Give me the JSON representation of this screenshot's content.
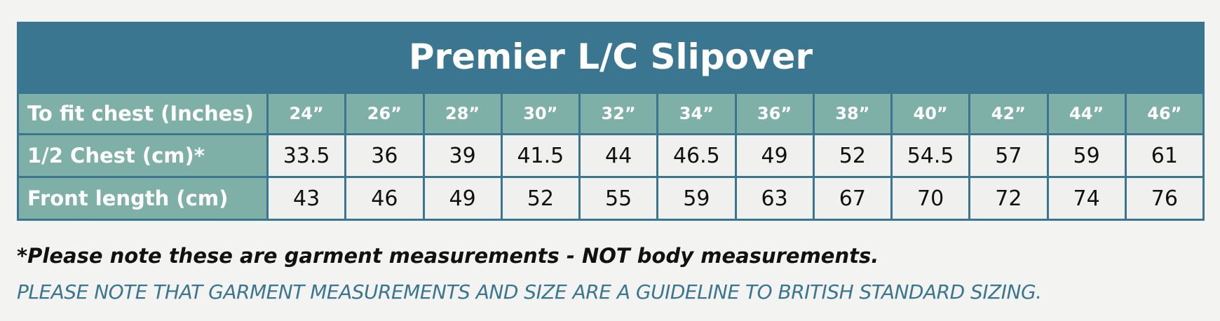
{
  "table": {
    "title": "Premier L/C Slipover",
    "header": [
      "To fit chest (Inches)",
      "24”",
      "26”",
      "28”",
      "30”",
      "32”",
      "34”",
      "36”",
      "38”",
      "40”",
      "42”",
      "44”",
      "46”"
    ],
    "rows": [
      [
        "1/2 Chest (cm)*",
        "33.5",
        "36",
        "39",
        "41.5",
        "44",
        "46.5",
        "49",
        "52",
        "54.5",
        "57",
        "59",
        "61"
      ],
      [
        "Front length (cm)",
        "43",
        "46",
        "49",
        "52",
        "55",
        "59",
        "63",
        "67",
        "70",
        "72",
        "74",
        "76"
      ]
    ]
  },
  "notes": {
    "garment": "*Please note these are garment measurements - NOT body measurements.",
    "guideline": "PLEASE NOTE THAT GARMENT MEASUREMENTS AND SIZE ARE A GUIDELINE TO BRITISH STANDARD SIZING."
  }
}
